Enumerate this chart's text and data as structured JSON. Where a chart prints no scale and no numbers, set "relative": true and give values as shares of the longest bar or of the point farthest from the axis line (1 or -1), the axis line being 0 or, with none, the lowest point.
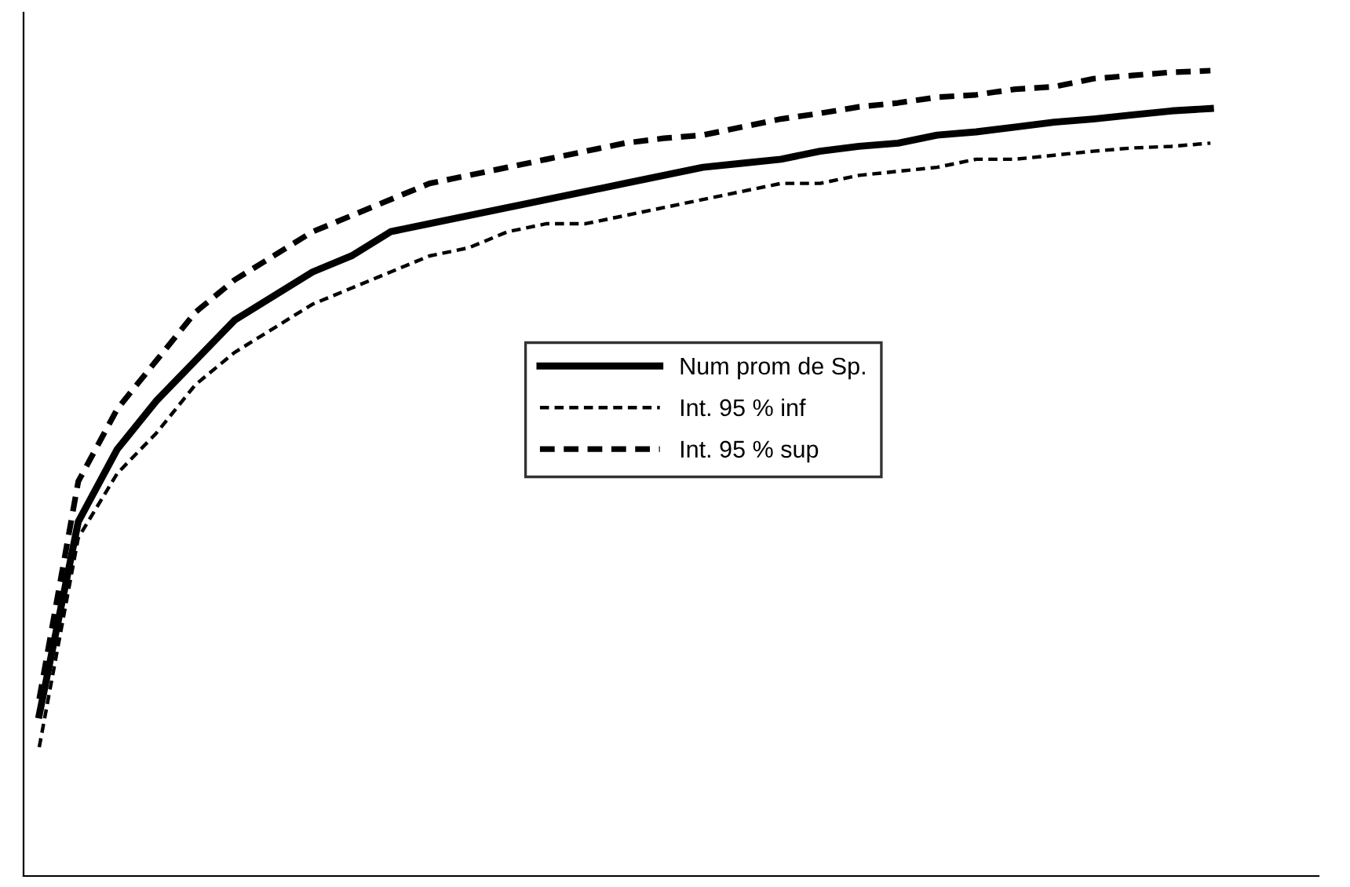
{
  "chart_data": {
    "type": "line",
    "relative": true,
    "legend": "center",
    "categories": [
      null,
      null,
      null,
      null,
      null,
      null,
      null,
      null,
      null,
      null,
      null,
      null,
      null,
      null,
      null,
      null,
      null,
      null,
      null,
      null,
      null,
      null,
      null,
      null,
      null,
      null,
      null,
      null,
      null,
      null,
      null
    ],
    "series": [
      {
        "name": "Num prom de Sp.",
        "color": "#000000",
        "line_style": "solid",
        "values": [
          0.2,
          0.44,
          0.53,
          0.59,
          0.64,
          0.69,
          0.72,
          0.75,
          0.77,
          0.8,
          0.81,
          0.82,
          0.83,
          0.84,
          0.85,
          0.86,
          0.87,
          0.88,
          0.885,
          0.89,
          0.9,
          0.906,
          0.91,
          0.92,
          0.924,
          0.93,
          0.936,
          0.94,
          0.945,
          0.95,
          0.953
        ]
      },
      {
        "name": "Int. 95 % inf",
        "color": "#000000",
        "line_style": "dashed",
        "values": [
          0.16,
          0.42,
          0.5,
          0.55,
          0.61,
          0.65,
          0.68,
          0.71,
          0.73,
          0.75,
          0.77,
          0.78,
          0.8,
          0.81,
          0.81,
          0.82,
          0.83,
          0.84,
          0.85,
          0.86,
          0.86,
          0.87,
          0.875,
          0.88,
          0.89,
          0.89,
          0.895,
          0.9,
          0.904,
          0.906,
          0.91
        ]
      },
      {
        "name": "Int. 95 % sup",
        "color": "#000000",
        "line_style": "dashed",
        "values": [
          0.22,
          0.49,
          0.58,
          0.64,
          0.7,
          0.74,
          0.77,
          0.8,
          0.82,
          0.84,
          0.86,
          0.87,
          0.88,
          0.89,
          0.9,
          0.91,
          0.916,
          0.92,
          0.93,
          0.94,
          0.947,
          0.955,
          0.96,
          0.967,
          0.97,
          0.977,
          0.98,
          0.99,
          0.994,
          0.998,
          1
        ]
      }
    ]
  }
}
